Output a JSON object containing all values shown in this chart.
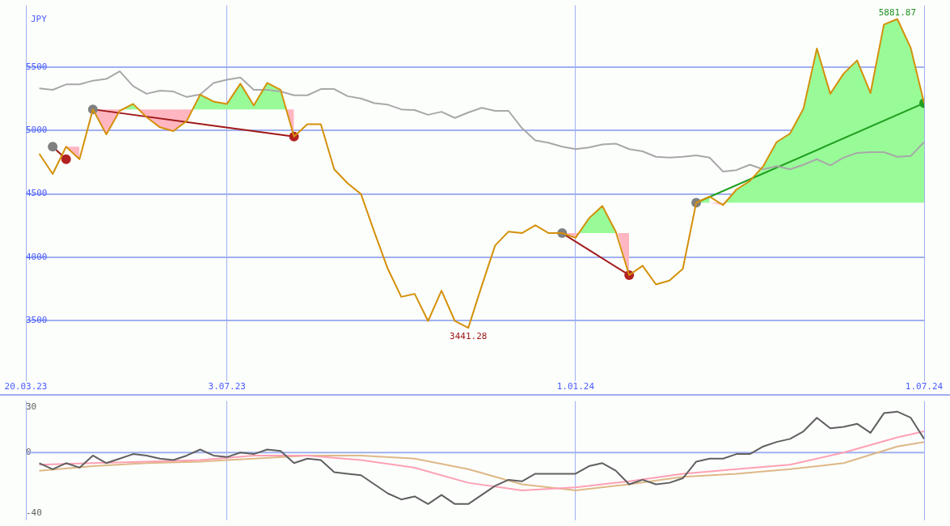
{
  "chart_data": [
    {
      "type": "line",
      "annotations": [
        "JPY",
        {
          "text": "5881.87",
          "x": "2024-06-17",
          "y": 5881.87
        },
        {
          "text": "3441.28",
          "x": "2023-11-06",
          "y": 3441.28
        }
      ],
      "x": [
        "2023-03-27",
        "2023-04-03",
        "2023-04-10",
        "2023-04-17",
        "2023-04-24",
        "2023-05-01",
        "2023-05-08",
        "2023-05-15",
        "2023-05-22",
        "2023-05-29",
        "2023-06-05",
        "2023-06-12",
        "2023-06-19",
        "2023-06-26",
        "2023-07-03",
        "2023-07-10",
        "2023-07-17",
        "2023-07-24",
        "2023-07-31",
        "2023-08-07",
        "2023-08-14",
        "2023-08-21",
        "2023-08-28",
        "2023-09-04",
        "2023-09-11",
        "2023-09-18",
        "2023-09-25",
        "2023-10-02",
        "2023-10-09",
        "2023-10-16",
        "2023-10-23",
        "2023-10-30",
        "2023-11-06",
        "2023-11-13",
        "2023-11-20",
        "2023-11-27",
        "2023-12-04",
        "2023-12-11",
        "2023-12-18",
        "2023-12-25",
        "2024-01-01",
        "2024-01-08",
        "2024-01-15",
        "2024-01-22",
        "2024-01-29",
        "2024-02-05",
        "2024-02-12",
        "2024-02-19",
        "2024-02-26",
        "2024-03-04",
        "2024-03-11",
        "2024-03-18",
        "2024-03-25",
        "2024-04-01",
        "2024-04-08",
        "2024-04-15",
        "2024-04-22",
        "2024-04-29",
        "2024-05-06",
        "2024-05-13",
        "2024-05-20",
        "2024-05-27",
        "2024-06-03",
        "2024-06-10",
        "2024-06-17",
        "2024-06-24",
        "2024-07-01"
      ],
      "series": [
        {
          "type": "area",
          "color": "#ffb6c1",
          "x": [
            "2023-04-10",
            "2023-04-17"
          ],
          "values": [
            4873,
            4774
          ]
        },
        {
          "type": "area",
          "color": "#98fb98",
          "x": [
            "2023-05-10",
            "2023-05-15",
            "2023-05-18"
          ],
          "values": [
            5168,
            5211,
            5168
          ]
        },
        {
          "type": "area",
          "color": "#98fb98",
          "x": [
            "2023-06-15",
            "2023-06-19",
            "2023-06-26",
            "2023-07-03",
            "2023-07-10",
            "2023-07-17",
            "2023-07-24",
            "2023-07-31",
            "2023-08-03"
          ],
          "values": [
            5168,
            5285,
            5229,
            5211,
            5371,
            5199,
            5377,
            5322,
            5168
          ]
        },
        {
          "type": "area",
          "color": "#ffb6c1",
          "x": [
            "2023-04-24",
            "2023-05-01",
            "2023-05-08",
            "2023-05-10"
          ],
          "values": [
            5168,
            4971,
            5156,
            5168
          ]
        },
        {
          "type": "area",
          "color": "#ffb6c1",
          "x": [
            "2023-05-18",
            "2023-05-22",
            "2023-05-29",
            "2023-06-05",
            "2023-06-12",
            "2023-06-15"
          ],
          "values": [
            5168,
            5106,
            5026,
            4996,
            5076,
            5168
          ]
        },
        {
          "type": "area",
          "color": "#ffb6c1",
          "x": [
            "2023-08-03",
            "2023-08-07"
          ],
          "values": [
            5168,
            4953
          ]
        },
        {
          "type": "area",
          "color": "#ffb6c1",
          "x": [
            "2023-12-25",
            "2024-01-01",
            "2024-01-03"
          ],
          "values": [
            4190,
            4153,
            4190
          ]
        },
        {
          "type": "area",
          "color": "#98fb98",
          "x": [
            "2024-01-03",
            "2024-01-08",
            "2024-01-15",
            "2024-01-22",
            "2024-01-23"
          ],
          "values": [
            4190,
            4307,
            4405,
            4202,
            4190
          ]
        },
        {
          "type": "area",
          "color": "#ffb6c1",
          "x": [
            "2024-01-23",
            "2024-01-29"
          ],
          "values": [
            4190,
            3858
          ]
        },
        {
          "type": "area",
          "color": "#98fb98",
          "x": [
            "2024-03-04",
            "2024-03-11"
          ],
          "values": [
            4430,
            4479
          ]
        },
        {
          "type": "area",
          "color": "#ffb6c1",
          "x": [
            "2024-03-11",
            "2024-03-18",
            "2024-03-19"
          ],
          "values": [
            4430,
            4411,
            4430
          ]
        },
        {
          "type": "area",
          "color": "#98fb98",
          "x": [
            "2024-03-19",
            "2024-03-25",
            "2024-04-01",
            "2024-04-08",
            "2024-04-15",
            "2024-04-22",
            "2024-04-29",
            "2024-05-06",
            "2024-05-13",
            "2024-05-20",
            "2024-05-27",
            "2024-06-03",
            "2024-06-10",
            "2024-06-17",
            "2024-06-24",
            "2024-07-01"
          ],
          "values": [
            4430,
            4534,
            4602,
            4719,
            4910,
            4977,
            5174,
            5648,
            5291,
            5451,
            5555,
            5297,
            5838,
            5881.87,
            5654,
            5217
          ]
        },
        {
          "color": "#d4900a",
          "values": [
            4817,
            4657,
            4873,
            4774,
            5168,
            4971,
            5156,
            5211,
            5106,
            5026,
            4996,
            5076,
            5285,
            5229,
            5211,
            5371,
            5199,
            5377,
            5322,
            4953,
            5051,
            5051,
            4694,
            4584,
            4498,
            4196,
            3907,
            3686,
            3710,
            3495,
            3735,
            3495,
            3441.28,
            3772,
            4092,
            4202,
            4190,
            4252,
            4190,
            4190,
            4153,
            4307,
            4405,
            4202,
            3858,
            3932,
            3784,
            3815,
            3907,
            4430,
            4479,
            4411,
            4534,
            4602,
            4719,
            4910,
            4977,
            5174,
            5648,
            5291,
            5451,
            5555,
            5297,
            5838,
            5881.87,
            5654,
            5217
          ]
        },
        {
          "color": "#a8a8a8",
          "values": [
            5334,
            5322,
            5365,
            5365,
            5395,
            5408,
            5469,
            5352,
            5291,
            5316,
            5309,
            5266,
            5285,
            5377,
            5402,
            5420,
            5322,
            5322,
            5309,
            5279,
            5279,
            5328,
            5328,
            5272,
            5254,
            5217,
            5205,
            5168,
            5162,
            5125,
            5149,
            5100,
            5143,
            5180,
            5156,
            5156,
            5020,
            4922,
            4903,
            4873,
            4854,
            4867,
            4891,
            4897,
            4854,
            4836,
            4793,
            4787,
            4793,
            4805,
            4787,
            4676,
            4688,
            4731,
            4694,
            4719,
            4694,
            4731,
            4774,
            4725,
            4787,
            4824,
            4830,
            4830,
            4793,
            4799,
            4910
          ]
        },
        {
          "type": "line",
          "color": "#a01818",
          "colors": [
            "#808080",
            "#b22222"
          ],
          "marker": "circle",
          "x": [
            "2023-04-03",
            "2023-04-10"
          ],
          "values": [
            4873,
            4774
          ]
        },
        {
          "type": "line",
          "color": "#a01818",
          "colors": [
            "#808080",
            "#b22222"
          ],
          "marker": "circle",
          "x": [
            "2023-04-24",
            "2023-08-07"
          ],
          "values": [
            5168,
            4953
          ]
        },
        {
          "type": "line",
          "color": "#a01818",
          "colors": [
            "#808080",
            "#b22222"
          ],
          "marker": "circle",
          "x": [
            "2023-12-25",
            "2024-01-29"
          ],
          "values": [
            4190,
            3858
          ]
        },
        {
          "type": "line",
          "color": "#20a020",
          "colors": [
            "#808080",
            "#20a020"
          ],
          "marker": "circle",
          "x": [
            "2024-03-04",
            "2024-07-01"
          ],
          "values": [
            4430,
            5217
          ]
        }
      ],
      "xlim": [
        "2023-03-20",
        "2024-07-01"
      ],
      "xticks": [
        {
          "value": "2023-03-20",
          "label": "20.03.23"
        },
        {
          "value": "2023-07-03",
          "label": "3.07.23"
        },
        {
          "value": "2024-01-01",
          "label": "1.01.24"
        },
        {
          "value": "2024-07-01",
          "label": "1.07.24"
        }
      ],
      "ylim": [
        3020,
        5990
      ],
      "yticks": [
        3500,
        4000,
        4500,
        5000,
        5500
      ],
      "grid": true,
      "legend": false
    },
    {
      "type": "line",
      "x": [
        "2023-03-27",
        "2023-04-03",
        "2023-04-10",
        "2023-04-17",
        "2023-04-24",
        "2023-05-01",
        "2023-05-08",
        "2023-05-15",
        "2023-05-22",
        "2023-05-29",
        "2023-06-05",
        "2023-06-12",
        "2023-06-19",
        "2023-06-26",
        "2023-07-03",
        "2023-07-10",
        "2023-07-17",
        "2023-07-24",
        "2023-07-31",
        "2023-08-07",
        "2023-08-14",
        "2023-08-21",
        "2023-08-28",
        "2023-09-04",
        "2023-09-11",
        "2023-09-18",
        "2023-09-25",
        "2023-10-02",
        "2023-10-09",
        "2023-10-16",
        "2023-10-23",
        "2023-10-30",
        "2023-11-06",
        "2023-11-13",
        "2023-11-20",
        "2023-11-27",
        "2023-12-04",
        "2023-12-11",
        "2023-12-18",
        "2023-12-25",
        "2024-01-01",
        "2024-01-08",
        "2024-01-15",
        "2024-01-22",
        "2024-01-29",
        "2024-02-05",
        "2024-02-12",
        "2024-02-19",
        "2024-02-26",
        "2024-03-04",
        "2024-03-11",
        "2024-03-18",
        "2024-03-25",
        "2024-04-01",
        "2024-04-08",
        "2024-04-15",
        "2024-04-22",
        "2024-04-29",
        "2024-05-06",
        "2024-05-13",
        "2024-05-20",
        "2024-05-27",
        "2024-06-03",
        "2024-06-10",
        "2024-06-17",
        "2024-06-24",
        "2024-07-01"
      ],
      "series": [
        {
          "color": "#606060",
          "values": [
            -7,
            -11,
            -7,
            -10,
            -2,
            -7,
            -4,
            -1,
            -2,
            -4,
            -5,
            -2,
            2,
            -2,
            -3,
            0,
            -1,
            2,
            1,
            -7,
            -4,
            -5,
            -13,
            -14,
            -15,
            -21,
            -27,
            -31,
            -29,
            -34,
            -28,
            -34,
            -34,
            -28,
            -22,
            -18,
            -19,
            -14,
            -14,
            -14,
            -14,
            -9,
            -7,
            -12,
            -21,
            -18,
            -21,
            -20,
            -17,
            -6,
            -4,
            -4,
            -1,
            -1,
            4,
            7,
            9,
            14,
            23,
            16,
            17,
            19,
            13,
            26,
            27,
            23,
            9
          ]
        },
        {
          "color": "#ffa0b4",
          "x": [
            "2023-03-27",
            "2023-04-24",
            "2023-05-22",
            "2023-06-19",
            "2023-07-17",
            "2023-08-14",
            "2023-09-11",
            "2023-10-09",
            "2023-11-06",
            "2023-12-04",
            "2024-01-01",
            "2024-01-29",
            "2024-02-26",
            "2024-03-25",
            "2024-04-22",
            "2024-05-20",
            "2024-06-17",
            "2024-07-01"
          ],
          "values": [
            -8,
            -7,
            -6,
            -5,
            -2,
            -2,
            -5,
            -10,
            -20,
            -25,
            -23,
            -19,
            -14,
            -11,
            -8,
            0,
            10,
            14
          ]
        },
        {
          "color": "#deb887",
          "x": [
            "2023-03-27",
            "2023-04-24",
            "2023-05-22",
            "2023-06-19",
            "2023-07-17",
            "2023-08-14",
            "2023-09-11",
            "2023-10-09",
            "2023-11-06",
            "2023-12-04",
            "2024-01-01",
            "2024-01-29",
            "2024-02-26",
            "2024-03-25",
            "2024-04-22",
            "2024-05-20",
            "2024-06-17",
            "2024-07-01"
          ],
          "values": [
            -12,
            -9,
            -7,
            -6,
            -4,
            -2,
            -2,
            -4,
            -11,
            -21,
            -25,
            -21,
            -16,
            -14,
            -11,
            -7,
            4,
            7
          ]
        }
      ],
      "xlim": [
        "2023-03-20",
        "2024-07-01"
      ],
      "xticks": [
        {
          "value": "2023-03-20",
          "label": null
        },
        {
          "value": "2023-07-03",
          "label": null
        },
        {
          "value": "2024-01-01",
          "label": null
        },
        {
          "value": "2024-07-01",
          "label": null
        }
      ],
      "ylim": [
        -45,
        34
      ],
      "yticks": [
        -40,
        0,
        30
      ],
      "grid": "x",
      "tick_labels": "y",
      "legend": false,
      "ref_lines": [
        {
          "axis": "y",
          "value": 0,
          "color": "#a0b0f0"
        }
      ]
    }
  ]
}
